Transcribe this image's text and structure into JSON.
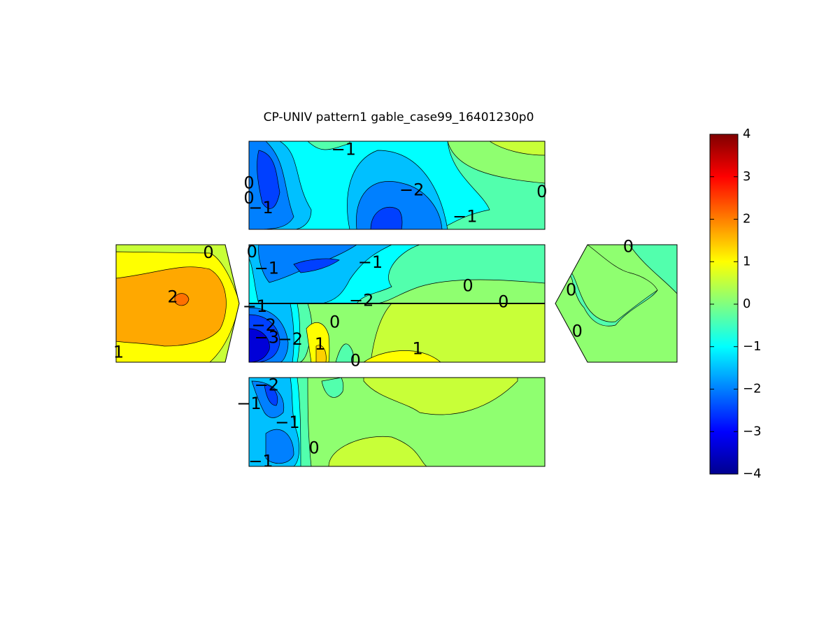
{
  "chart_data": {
    "type": "heatmap",
    "title": "CP-UNIV pattern1 gable_case99_16401230p0",
    "xlabel": "",
    "ylabel": "",
    "colormap": "jet",
    "clim": [
      -4,
      4
    ],
    "colorbar": {
      "ticks": [
        "4",
        "3",
        "2",
        "1",
        "0",
        "−1",
        "−2",
        "−3",
        "−4"
      ],
      "placement": "right"
    },
    "panels": [
      {
        "name": "top",
        "contour_labels": [
          {
            "text": "−1",
            "u": 0.32,
            "v": 0.1
          },
          {
            "text": "0",
            "u": 0.0,
            "v": 0.48
          },
          {
            "text": "0",
            "u": 0.0,
            "v": 0.65
          },
          {
            "text": "−1",
            "u": 0.04,
            "v": 0.76
          },
          {
            "text": "−2",
            "u": 0.55,
            "v": 0.56
          },
          {
            "text": "−1",
            "u": 0.73,
            "v": 0.86
          },
          {
            "text": "0",
            "u": 0.99,
            "v": 0.58
          }
        ]
      },
      {
        "name": "left-gable",
        "contour_labels": [
          {
            "text": "0",
            "u": 0.75,
            "v": 0.07
          },
          {
            "text": "2",
            "u": 0.46,
            "v": 0.45
          },
          {
            "text": "1",
            "u": 0.02,
            "v": 0.92
          }
        ]
      },
      {
        "name": "wall-upper",
        "contour_labels": [
          {
            "text": "0",
            "u": 0.01,
            "v": 0.13
          },
          {
            "text": "−1",
            "u": 0.06,
            "v": 0.41
          },
          {
            "text": "−1",
            "u": 0.41,
            "v": 0.31
          },
          {
            "text": "0",
            "u": 0.74,
            "v": 0.71
          },
          {
            "text": "−2",
            "u": 0.38,
            "v": 0.96
          },
          {
            "text": "0",
            "u": 0.86,
            "v": 0.98
          }
        ]
      },
      {
        "name": "wall-lower",
        "contour_labels": [
          {
            "text": "−1",
            "u": 0.02,
            "v": 0.06
          },
          {
            "text": "−2",
            "u": 0.05,
            "v": 0.38
          },
          {
            "text": "−3",
            "u": 0.06,
            "v": 0.59
          },
          {
            "text": "−2",
            "u": 0.14,
            "v": 0.62
          },
          {
            "text": "1",
            "u": 0.24,
            "v": 0.7
          },
          {
            "text": "0",
            "u": 0.29,
            "v": 0.33
          },
          {
            "text": "0",
            "u": 0.36,
            "v": 0.98
          },
          {
            "text": "1",
            "u": 0.57,
            "v": 0.78
          }
        ]
      },
      {
        "name": "right-gable",
        "contour_labels": [
          {
            "text": "0",
            "u": 0.6,
            "v": 0.02
          },
          {
            "text": "0",
            "u": 0.13,
            "v": 0.39
          },
          {
            "text": "0",
            "u": 0.18,
            "v": 0.74
          }
        ]
      },
      {
        "name": "bottom",
        "contour_labels": [
          {
            "text": "−2",
            "u": 0.06,
            "v": 0.09
          },
          {
            "text": "−1",
            "u": 0.0,
            "v": 0.3
          },
          {
            "text": "−1",
            "u": 0.13,
            "v": 0.51
          },
          {
            "text": "0",
            "u": 0.22,
            "v": 0.8
          },
          {
            "text": "−1",
            "u": 0.04,
            "v": 0.95
          }
        ]
      }
    ]
  }
}
